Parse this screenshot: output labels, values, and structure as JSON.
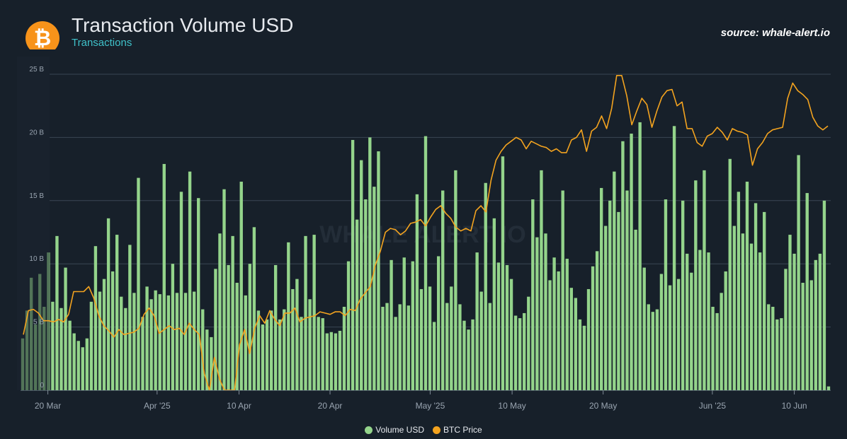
{
  "header": {
    "title": "Transaction Volume USD",
    "subtitle": "Transactions",
    "source": "source: whale-alert.io",
    "logo_glyph": "₿",
    "logo_icon": "bitcoin-icon",
    "watermark": "WHALE ALERT IO"
  },
  "colors": {
    "volume": "#94d48b",
    "price": "#f3a31f",
    "background": "#17202a",
    "grid": "#3a4654"
  },
  "chart_data": {
    "type": "bar",
    "title": "Transaction Volume USD",
    "subtitle": "Transactions",
    "x_start": "2025-03-17",
    "x_end": "2025-06-14",
    "x_ticks": [
      {
        "date": "2025-03-20",
        "label": "20 Mar"
      },
      {
        "date": "2025-04-01",
        "label": "Apr '25"
      },
      {
        "date": "2025-04-10",
        "label": "10 Apr"
      },
      {
        "date": "2025-04-20",
        "label": "20 Apr"
      },
      {
        "date": "2025-05-01",
        "label": "May '25"
      },
      {
        "date": "2025-05-10",
        "label": "10 May"
      },
      {
        "date": "2025-05-20",
        "label": "20 May"
      },
      {
        "date": "2025-06-01",
        "label": "Jun '25"
      },
      {
        "date": "2025-06-10",
        "label": "10 Jun"
      }
    ],
    "y_ticks": [
      {
        "value": 0,
        "label": "0"
      },
      {
        "value": 5,
        "label": "5 B"
      },
      {
        "value": 10,
        "label": "10 B"
      },
      {
        "value": 15,
        "label": "15 B"
      },
      {
        "value": 20,
        "label": "20 B"
      },
      {
        "value": 25,
        "label": "25 B"
      }
    ],
    "ylim": [
      0,
      25
    ],
    "y_unit": "B",
    "grid": true,
    "legend_position": "bottom-center",
    "series": [
      {
        "name": "Volume USD",
        "type": "bar",
        "color": "#94d48b",
        "values": [
          4.1,
          6.3,
          8.9,
          5.2,
          9.2,
          6.6,
          10.9,
          7.0,
          12.2,
          6.5,
          9.7,
          5.5,
          4.5,
          3.9,
          3.4,
          4.1,
          7.0,
          11.4,
          7.8,
          8.8,
          13.6,
          9.4,
          12.3,
          7.4,
          6.5,
          11.5,
          7.7,
          16.8,
          5.8,
          8.2,
          7.2,
          7.9,
          7.6,
          17.9,
          7.5,
          10.0,
          7.7,
          15.7,
          7.7,
          17.3,
          7.8,
          15.2,
          6.4,
          4.8,
          4.2,
          9.6,
          12.4,
          15.9,
          9.9,
          12.2,
          8.5,
          16.5,
          7.5,
          10.0,
          12.9,
          6.3,
          5.2,
          5.6,
          6.3,
          9.9,
          5.6,
          6.4,
          11.7,
          8.0,
          8.8,
          5.8,
          12.2,
          7.2,
          12.3,
          5.8,
          5.7,
          4.5,
          4.6,
          4.5,
          4.7,
          6.6,
          10.2,
          19.8,
          13.5,
          18.2,
          15.1,
          20.0,
          16.1,
          18.9,
          6.6,
          6.9,
          10.3,
          5.8,
          6.8,
          10.5,
          6.7,
          10.2,
          15.5,
          8.0,
          20.1,
          8.2,
          5.4,
          10.6,
          15.8,
          6.9,
          8.2,
          17.4,
          6.8,
          5.5,
          4.8,
          5.6,
          10.9,
          7.8,
          16.4,
          6.9,
          13.6,
          10.1,
          18.5,
          9.9,
          8.8,
          5.9,
          5.7,
          6.1,
          7.4,
          15.1,
          12.1,
          17.4,
          12.4,
          8.7,
          10.5,
          9.4,
          15.8,
          10.4,
          8.1,
          7.3,
          5.6,
          5.1,
          8.0,
          9.8,
          11.0,
          16.0,
          13.0,
          15.0,
          17.3,
          14.1,
          19.7,
          15.8,
          20.3,
          12.7,
          21.2,
          9.7,
          6.8,
          6.2,
          6.4,
          9.2,
          15.1,
          8.3,
          20.9,
          8.8,
          15.0,
          10.8,
          9.3,
          16.6,
          11.1,
          17.4,
          10.9,
          6.6,
          6.1,
          7.7,
          9.4,
          18.3,
          13.0,
          15.7,
          12.4,
          16.5,
          11.6,
          14.8,
          10.9,
          14.1,
          6.8,
          6.6,
          5.6,
          5.7,
          9.6,
          12.3,
          10.8,
          18.6,
          8.5,
          15.6,
          8.7,
          10.3,
          10.8,
          15.0,
          0.3
        ]
      },
      {
        "name": "BTC Price",
        "type": "line",
        "color": "#f3a31f",
        "values": [
          4.4,
          6.3,
          6.4,
          6.1,
          5.5,
          5.5,
          5.4,
          5.6,
          5.4,
          6.0,
          7.8,
          7.8,
          7.8,
          8.2,
          7.3,
          5.9,
          5.1,
          4.7,
          4.2,
          4.8,
          4.4,
          4.5,
          4.6,
          4.9,
          6.0,
          6.5,
          5.9,
          4.5,
          4.8,
          5.1,
          4.8,
          4.9,
          4.4,
          5.3,
          4.8,
          4.4,
          1.3,
          0.0,
          2.6,
          0.9,
          0.0,
          0.0,
          0.0,
          3.6,
          4.8,
          2.9,
          4.9,
          5.9,
          5.3,
          6.3,
          5.6,
          5.1,
          6.1,
          6.1,
          6.5,
          5.4,
          5.7,
          5.8,
          5.9,
          6.2,
          6.1,
          6.0,
          6.2,
          6.2,
          5.9,
          6.4,
          6.3,
          7.2,
          7.7,
          8.2,
          9.9,
          11.0,
          12.5,
          12.8,
          12.7,
          12.3,
          12.6,
          13.2,
          13.3,
          13.5,
          13.0,
          13.7,
          14.3,
          14.6,
          14.0,
          13.6,
          12.9,
          12.6,
          12.8,
          12.6,
          14.2,
          14.6,
          14.1,
          16.6,
          18.2,
          18.9,
          19.4,
          19.7,
          20.0,
          19.8,
          19.1,
          19.7,
          19.5,
          19.3,
          19.2,
          18.9,
          19.1,
          18.8,
          18.8,
          19.8,
          20.0,
          20.6,
          18.9,
          20.5,
          20.8,
          21.7,
          20.7,
          22.3,
          24.9,
          24.9,
          23.3,
          21.0,
          22.1,
          23.1,
          22.6,
          20.8,
          22.1,
          23.2,
          23.7,
          23.8,
          22.5,
          22.8,
          20.7,
          20.7,
          19.6,
          19.3,
          20.1,
          20.3,
          20.8,
          20.4,
          19.8,
          20.7,
          20.5,
          20.4,
          20.2,
          17.8,
          19.1,
          19.6,
          20.3,
          20.6,
          20.7,
          20.8,
          23.1,
          24.3,
          23.7,
          23.4,
          23.0,
          21.6,
          20.9,
          20.6,
          20.9
        ]
      }
    ]
  }
}
